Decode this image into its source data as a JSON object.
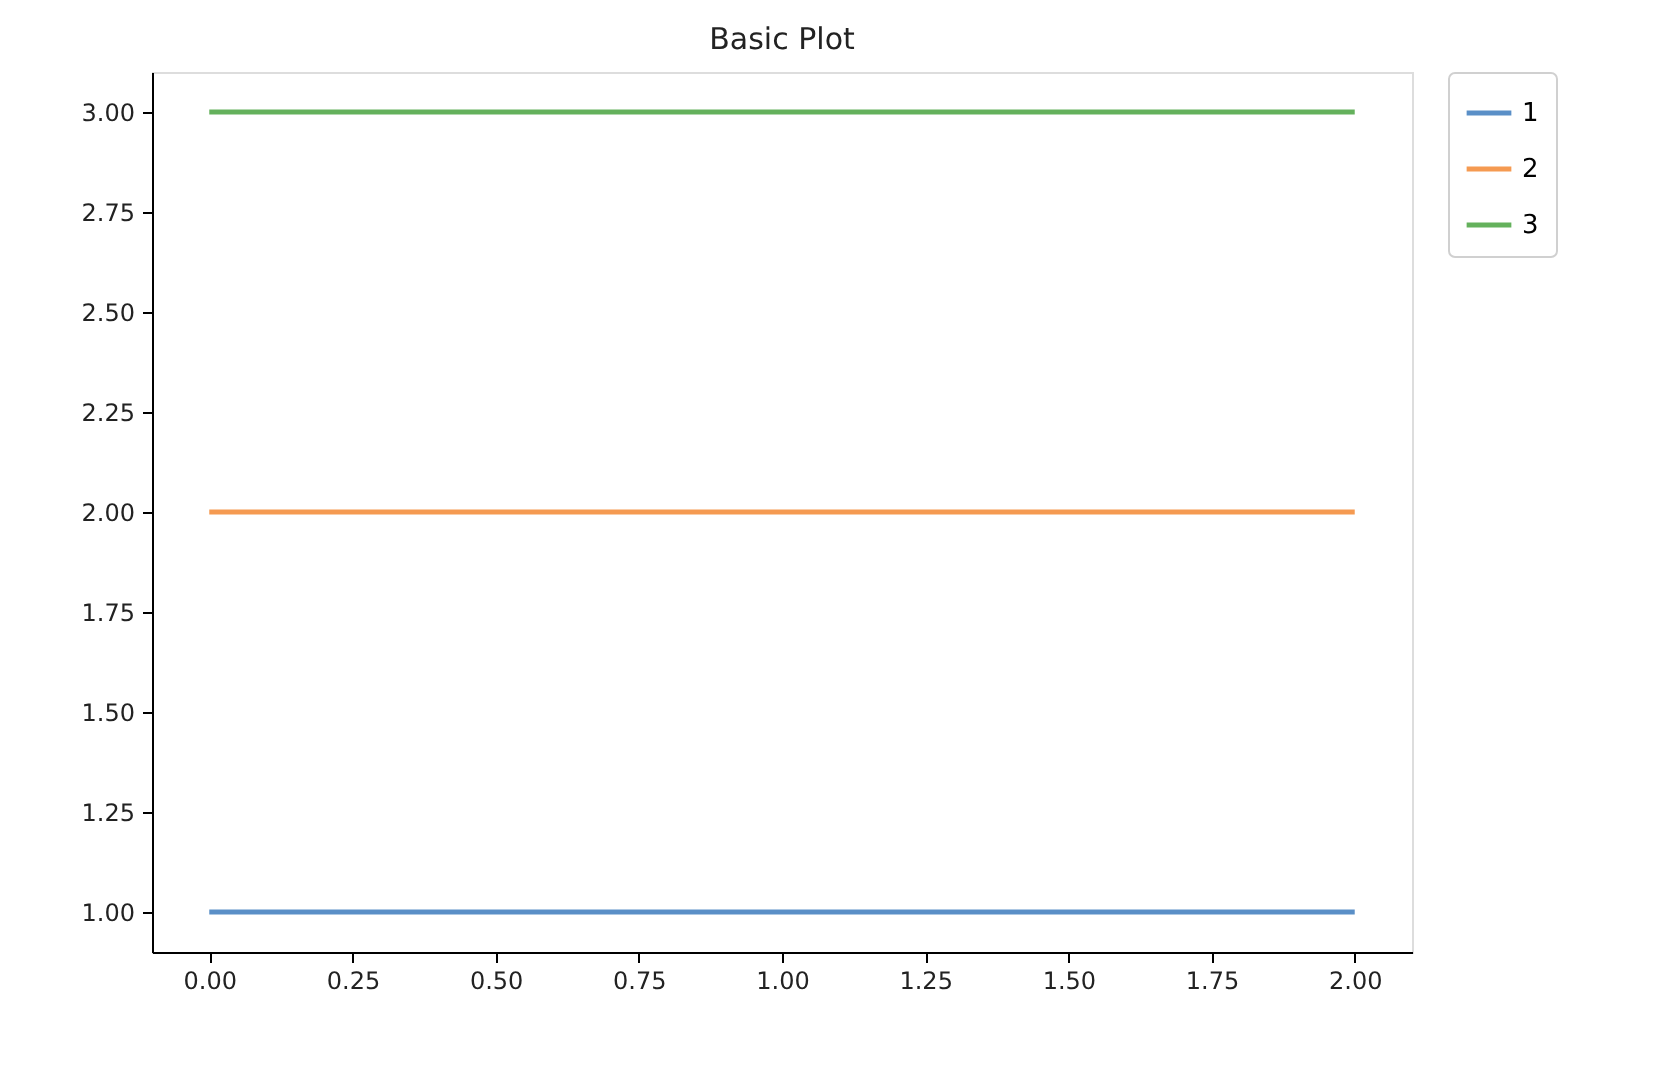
{
  "chart_data": {
    "type": "line",
    "title": "Basic Plot",
    "x": [
      0,
      2
    ],
    "series": [
      {
        "name": "1",
        "color": "#5a8fc7",
        "values": [
          1,
          1
        ]
      },
      {
        "name": "2",
        "color": "#f59a51",
        "values": [
          2,
          2
        ]
      },
      {
        "name": "3",
        "color": "#64b15c",
        "values": [
          3,
          3
        ]
      }
    ],
    "xlim": [
      -0.1,
      2.1
    ],
    "ylim": [
      0.9,
      3.1
    ],
    "xticks": [
      {
        "value": 0,
        "label": "0.00"
      },
      {
        "value": 0.25,
        "label": "0.25"
      },
      {
        "value": 0.5,
        "label": "0.50"
      },
      {
        "value": 0.75,
        "label": "0.75"
      },
      {
        "value": 1,
        "label": "1.00"
      },
      {
        "value": 1.25,
        "label": "1.25"
      },
      {
        "value": 1.5,
        "label": "1.50"
      },
      {
        "value": 1.75,
        "label": "1.75"
      },
      {
        "value": 2,
        "label": "2.00"
      }
    ],
    "yticks": [
      {
        "value": 1,
        "label": "1.00"
      },
      {
        "value": 1.25,
        "label": "1.25"
      },
      {
        "value": 1.5,
        "label": "1.50"
      },
      {
        "value": 1.75,
        "label": "1.75"
      },
      {
        "value": 2,
        "label": "2.00"
      },
      {
        "value": 2.25,
        "label": "2.25"
      },
      {
        "value": 2.5,
        "label": "2.50"
      },
      {
        "value": 2.75,
        "label": "2.75"
      },
      {
        "value": 3,
        "label": "3.00"
      }
    ],
    "grid": false,
    "legend": "top right",
    "line_style": "solid"
  }
}
